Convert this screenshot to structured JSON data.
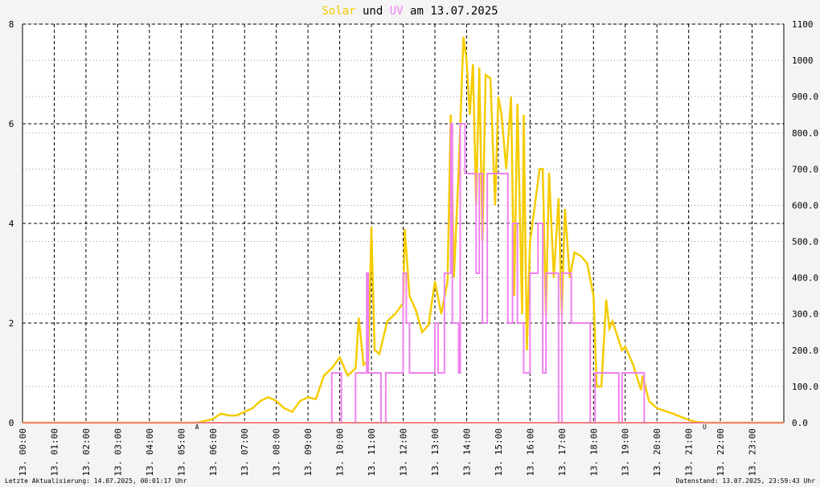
{
  "chart_data": {
    "type": "line",
    "title_connector": "und",
    "title_suffix": "am 13.07.2025",
    "footer_left": "Letzte Aktualisierung: 14.07.2025, 00:01:17 Uhr",
    "footer_right": "Datenstand: 13.07.2025, 23:59:43 Uhr",
    "xlim": [
      0,
      24
    ],
    "xticks": [
      {
        "value": 0,
        "label": "13. 00:00"
      },
      {
        "value": 1,
        "label": "13. 01:00"
      },
      {
        "value": 2,
        "label": "13. 02:00"
      },
      {
        "value": 3,
        "label": "13. 03:00"
      },
      {
        "value": 4,
        "label": "13. 04:00"
      },
      {
        "value": 5,
        "label": "13. 05:00"
      },
      {
        "value": 6,
        "label": "13. 06:00"
      },
      {
        "value": 7,
        "label": "13. 07:00"
      },
      {
        "value": 8,
        "label": "13. 08:00"
      },
      {
        "value": 9,
        "label": "13. 09:00"
      },
      {
        "value": 10,
        "label": "13. 10:00"
      },
      {
        "value": 11,
        "label": "13. 11:00"
      },
      {
        "value": 12,
        "label": "13. 12:00"
      },
      {
        "value": 13,
        "label": "13. 13:00"
      },
      {
        "value": 14,
        "label": "13. 14:00"
      },
      {
        "value": 15,
        "label": "13. 15:00"
      },
      {
        "value": 16,
        "label": "13. 16:00"
      },
      {
        "value": 17,
        "label": "13. 17:00"
      },
      {
        "value": 18,
        "label": "13. 18:00"
      },
      {
        "value": 19,
        "label": "13. 19:00"
      },
      {
        "value": 20,
        "label": "13. 20:00"
      },
      {
        "value": 21,
        "label": "13. 21:00"
      },
      {
        "value": 22,
        "label": "13. 22:00"
      },
      {
        "value": 23,
        "label": "13. 23:00"
      }
    ],
    "ylim": [
      0,
      8
    ],
    "yticks": [
      0,
      2,
      4,
      6,
      8
    ],
    "y2lim": [
      0,
      1100
    ],
    "y2ticks": [
      {
        "value": 0,
        "label": "0.0"
      },
      {
        "value": 100,
        "label": "100.0"
      },
      {
        "value": 200,
        "label": "200.0"
      },
      {
        "value": 300,
        "label": "300.0"
      },
      {
        "value": 400,
        "label": "400.0"
      },
      {
        "value": 500,
        "label": "500.0"
      },
      {
        "value": 600,
        "label": "600.0"
      },
      {
        "value": 700,
        "label": "700.0"
      },
      {
        "value": 800,
        "label": "800.0"
      },
      {
        "value": 900,
        "label": "900.0"
      },
      1000,
      1100
    ],
    "annotations": [
      {
        "x": 5.5,
        "text": "A"
      },
      {
        "x": 21.5,
        "text": "U"
      }
    ],
    "annotation_color": "#cc0000",
    "series": [
      {
        "name": "Solar",
        "color": "#f5cc00",
        "axis": "y2",
        "x": [
          0,
          5.5,
          5.75,
          6,
          6.25,
          6.5,
          6.75,
          7,
          7.25,
          7.5,
          7.75,
          8,
          8.25,
          8.5,
          8.75,
          9,
          9.25,
          9.5,
          9.75,
          10,
          10.25,
          10.5,
          10.6,
          10.75,
          10.9,
          11,
          11.1,
          11.25,
          11.5,
          11.75,
          12,
          12.05,
          12.2,
          12.4,
          12.6,
          12.8,
          13,
          13.2,
          13.4,
          13.5,
          13.6,
          13.75,
          13.9,
          14,
          14.1,
          14.2,
          14.3,
          14.4,
          14.5,
          14.6,
          14.75,
          14.9,
          15,
          15.1,
          15.25,
          15.4,
          15.5,
          15.6,
          15.75,
          15.8,
          15.9,
          16,
          16.15,
          16.3,
          16.4,
          16.5,
          16.6,
          16.75,
          16.9,
          17,
          17.1,
          17.25,
          17.4,
          17.6,
          17.8,
          18,
          18.1,
          18.25,
          18.4,
          18.5,
          18.6,
          18.75,
          18.9,
          19,
          19.25,
          19.5,
          19.55,
          19.75,
          20,
          20.5,
          21,
          21.25,
          21.5,
          24
        ],
        "values": [
          0,
          0,
          5,
          10,
          25,
          20,
          20,
          30,
          40,
          60,
          70,
          60,
          40,
          30,
          60,
          70,
          65,
          130,
          150,
          180,
          130,
          150,
          290,
          160,
          170,
          540,
          200,
          190,
          280,
          300,
          330,
          535,
          350,
          310,
          250,
          270,
          390,
          300,
          390,
          850,
          400,
          700,
          1065,
          1000,
          850,
          990,
          600,
          980,
          500,
          960,
          950,
          600,
          900,
          850,
          700,
          900,
          350,
          880,
          300,
          850,
          200,
          500,
          600,
          700,
          700,
          300,
          690,
          400,
          620,
          300,
          590,
          400,
          470,
          460,
          440,
          350,
          100,
          100,
          340,
          260,
          280,
          240,
          200,
          210,
          160,
          90,
          130,
          60,
          40,
          25,
          8,
          2,
          0,
          0
        ]
      },
      {
        "name": "UV",
        "color": "#ee82ee",
        "axis": "y",
        "x": [
          0,
          9.75,
          9.75,
          10.05,
          10.05,
          10.5,
          10.5,
          10.85,
          10.85,
          10.9,
          10.9,
          11.3,
          11.3,
          11.45,
          11.45,
          12,
          12,
          12.1,
          12.1,
          12.2,
          12.2,
          13,
          13,
          13.1,
          13.1,
          13.3,
          13.3,
          13.5,
          13.5,
          13.55,
          13.55,
          13.75,
          13.75,
          13.8,
          13.8,
          13.95,
          13.95,
          14.3,
          14.3,
          14.4,
          14.4,
          14.5,
          14.5,
          14.65,
          14.65,
          15.3,
          15.3,
          15.45,
          15.45,
          15.6,
          15.6,
          15.8,
          15.8,
          16,
          16,
          16.25,
          16.25,
          16.4,
          16.4,
          16.5,
          16.5,
          16.9,
          16.9,
          17,
          17,
          17.3,
          17.3,
          17.9,
          17.9,
          18.05,
          18.05,
          18.8,
          18.8,
          18.9,
          18.9,
          19.6,
          19.6,
          24
        ],
        "values": [
          0,
          0,
          1,
          1,
          0,
          0,
          1,
          1,
          3,
          3,
          1,
          1,
          0,
          0,
          1,
          1,
          3,
          3,
          2,
          2,
          1,
          1,
          2,
          2,
          1,
          1,
          3,
          3,
          6,
          6,
          2,
          2,
          1,
          1,
          6,
          6,
          5,
          5,
          3,
          3,
          5,
          5,
          2,
          2,
          5,
          5,
          2,
          2,
          4,
          4,
          2,
          2,
          1,
          1,
          3,
          3,
          4,
          4,
          1,
          1,
          3,
          3,
          0,
          0,
          3,
          3,
          2,
          2,
          0,
          0,
          1,
          1,
          0,
          0,
          1,
          1,
          0,
          0
        ]
      }
    ]
  }
}
